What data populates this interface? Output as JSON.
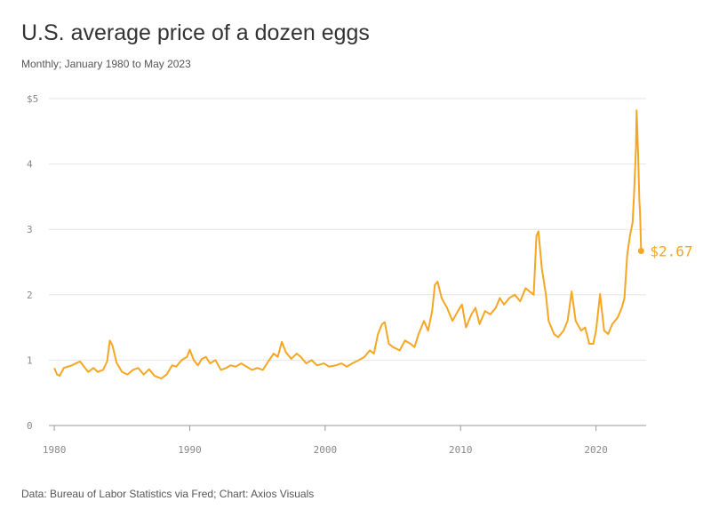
{
  "chart_data": {
    "type": "line",
    "title": "U.S. average price of a dozen eggs",
    "subtitle": "Monthly; January 1980 to May 2023",
    "source": "Data: Bureau of Labor Statistics via Fred; Chart: Axios Visuals",
    "x": [
      1980.0,
      1980.2,
      1980.4,
      1980.7,
      1981.0,
      1981.3,
      1981.6,
      1981.9,
      1982.2,
      1982.5,
      1982.9,
      1983.2,
      1983.6,
      1983.9,
      1984.1,
      1984.3,
      1984.6,
      1985.0,
      1985.4,
      1985.8,
      1986.2,
      1986.6,
      1987.0,
      1987.4,
      1987.9,
      1988.3,
      1988.7,
      1989.0,
      1989.4,
      1989.8,
      1990.0,
      1990.3,
      1990.6,
      1990.9,
      1991.2,
      1991.5,
      1991.9,
      1992.3,
      1992.7,
      1993.0,
      1993.4,
      1993.8,
      1994.2,
      1994.6,
      1995.0,
      1995.4,
      1995.8,
      1996.2,
      1996.5,
      1996.8,
      1997.1,
      1997.5,
      1997.9,
      1998.2,
      1998.6,
      1999.0,
      1999.4,
      1999.9,
      2000.3,
      2000.8,
      2001.2,
      2001.6,
      2002.0,
      2002.5,
      2002.9,
      2003.3,
      2003.6,
      2003.9,
      2004.2,
      2004.4,
      2004.7,
      2005.0,
      2005.5,
      2005.9,
      2006.3,
      2006.6,
      2006.9,
      2007.3,
      2007.6,
      2007.9,
      2008.1,
      2008.3,
      2008.6,
      2009.0,
      2009.4,
      2009.8,
      2010.1,
      2010.4,
      2010.8,
      2011.1,
      2011.4,
      2011.8,
      2012.2,
      2012.6,
      2012.9,
      2013.2,
      2013.6,
      2014.0,
      2014.4,
      2014.8,
      2015.1,
      2015.4,
      2015.6,
      2015.75,
      2016.0,
      2016.3,
      2016.5,
      2016.9,
      2017.2,
      2017.6,
      2017.9,
      2018.2,
      2018.5,
      2018.9,
      2019.2,
      2019.5,
      2019.8,
      2020.0,
      2020.3,
      2020.6,
      2020.9,
      2021.2,
      2021.6,
      2021.9,
      2022.1,
      2022.3,
      2022.5,
      2022.7,
      2022.8,
      2022.95,
      2023.0,
      2023.1,
      2023.2,
      2023.25,
      2023.33
    ],
    "series": [
      {
        "name": "Average price",
        "color": "#f5a623",
        "values": [
          0.88,
          0.78,
          0.76,
          0.88,
          0.9,
          0.92,
          0.95,
          0.98,
          0.9,
          0.82,
          0.88,
          0.82,
          0.85,
          0.98,
          1.3,
          1.22,
          0.96,
          0.82,
          0.78,
          0.85,
          0.88,
          0.78,
          0.86,
          0.76,
          0.72,
          0.78,
          0.92,
          0.9,
          1.0,
          1.05,
          1.16,
          1.0,
          0.92,
          1.02,
          1.05,
          0.95,
          1.0,
          0.85,
          0.88,
          0.92,
          0.9,
          0.95,
          0.9,
          0.85,
          0.88,
          0.85,
          0.98,
          1.1,
          1.05,
          1.28,
          1.12,
          1.02,
          1.1,
          1.05,
          0.95,
          1.0,
          0.92,
          0.95,
          0.9,
          0.92,
          0.95,
          0.9,
          0.95,
          1.0,
          1.05,
          1.15,
          1.1,
          1.4,
          1.55,
          1.58,
          1.25,
          1.2,
          1.15,
          1.3,
          1.25,
          1.2,
          1.4,
          1.6,
          1.45,
          1.75,
          2.15,
          2.2,
          1.95,
          1.8,
          1.6,
          1.75,
          1.85,
          1.5,
          1.7,
          1.8,
          1.55,
          1.75,
          1.7,
          1.8,
          1.95,
          1.85,
          1.95,
          2.0,
          1.9,
          2.1,
          2.05,
          2.0,
          2.9,
          2.97,
          2.4,
          2.0,
          1.6,
          1.4,
          1.35,
          1.45,
          1.6,
          2.05,
          1.6,
          1.45,
          1.5,
          1.25,
          1.25,
          1.45,
          2.01,
          1.45,
          1.4,
          1.55,
          1.65,
          1.8,
          1.95,
          2.6,
          2.9,
          3.1,
          3.5,
          4.25,
          4.82,
          4.21,
          3.45,
          3.27,
          2.67
        ],
        "value_labels": [
          null,
          null,
          null,
          null,
          null,
          null,
          null,
          null,
          null,
          null,
          null,
          null,
          null,
          null,
          null,
          null,
          null,
          null,
          null,
          null,
          null,
          null,
          null,
          null,
          null,
          null,
          null,
          null,
          null,
          null,
          null,
          null,
          null,
          null,
          null,
          null,
          null,
          null,
          null,
          null,
          null,
          null,
          null,
          null,
          null,
          null,
          null,
          null,
          null,
          null,
          null,
          null,
          null,
          null,
          null,
          null,
          null,
          null,
          null,
          null,
          null,
          null,
          null,
          null,
          null,
          null,
          null,
          null,
          null,
          null,
          null,
          null,
          null,
          null,
          null,
          null,
          null,
          null,
          null,
          null,
          null,
          null,
          null,
          null,
          null,
          null,
          null,
          null,
          null,
          null,
          null,
          null,
          null,
          null,
          null,
          null,
          null,
          null,
          null,
          null,
          null,
          null,
          null,
          null,
          null,
          null,
          null,
          null,
          null,
          null,
          null,
          null,
          null,
          null,
          null,
          null,
          null,
          null,
          null,
          null,
          null,
          null,
          null,
          null,
          null,
          null,
          null,
          null,
          null,
          null,
          null,
          null,
          null,
          null,
          "$2.67"
        ]
      }
    ],
    "xlim": [
      1979.6,
      2023.7
    ],
    "xticks": [
      1980,
      1990,
      2000,
      2010,
      2020
    ],
    "ylim": [
      0,
      5
    ],
    "yticks": [
      0,
      1,
      2,
      3,
      4,
      {
        "value": 5,
        "label": "$5"
      }
    ],
    "grid": true
  }
}
